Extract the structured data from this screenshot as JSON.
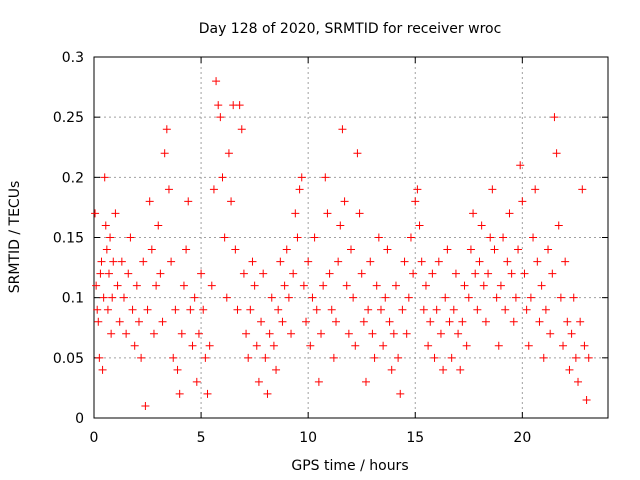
{
  "chart_data": {
    "type": "scatter",
    "title": "Day 128 of 2020, SRMTID for receiver wroc",
    "xlabel": "GPS time / hours",
    "ylabel": "SRMTID / TECUs",
    "xlim": [
      0,
      24.0
    ],
    "ylim": [
      0,
      0.3
    ],
    "xticks": [
      0,
      5,
      10,
      15,
      20
    ],
    "xtick_labels": [
      "0",
      "5",
      "10",
      "15",
      "20"
    ],
    "yticks": [
      0,
      0.05,
      0.1,
      0.15,
      0.2,
      0.25,
      0.3
    ],
    "ytick_labels": [
      "0",
      "0.05",
      "0.1",
      "0.15",
      "0.2",
      "0.25",
      "0.3"
    ],
    "grid": true,
    "marker": "+",
    "color": "#ff0000",
    "series": [
      {
        "name": "SRMTID",
        "points": [
          [
            0.05,
            0.17
          ],
          [
            0.1,
            0.11
          ],
          [
            0.15,
            0.09
          ],
          [
            0.2,
            0.08
          ],
          [
            0.25,
            0.05
          ],
          [
            0.3,
            0.12
          ],
          [
            0.35,
            0.13
          ],
          [
            0.4,
            0.04
          ],
          [
            0.45,
            0.1
          ],
          [
            0.5,
            0.2
          ],
          [
            0.55,
            0.16
          ],
          [
            0.6,
            0.14
          ],
          [
            0.65,
            0.09
          ],
          [
            0.7,
            0.12
          ],
          [
            0.75,
            0.15
          ],
          [
            0.8,
            0.07
          ],
          [
            0.85,
            0.1
          ],
          [
            0.9,
            0.13
          ],
          [
            1.0,
            0.17
          ],
          [
            1.1,
            0.11
          ],
          [
            1.2,
            0.08
          ],
          [
            1.3,
            0.13
          ],
          [
            1.4,
            0.1
          ],
          [
            1.5,
            0.07
          ],
          [
            1.6,
            0.12
          ],
          [
            1.7,
            0.15
          ],
          [
            1.8,
            0.09
          ],
          [
            1.9,
            0.06
          ],
          [
            2.0,
            0.11
          ],
          [
            2.1,
            0.08
          ],
          [
            2.2,
            0.05
          ],
          [
            2.3,
            0.13
          ],
          [
            2.4,
            0.01
          ],
          [
            2.5,
            0.09
          ],
          [
            2.6,
            0.18
          ],
          [
            2.7,
            0.14
          ],
          [
            2.8,
            0.07
          ],
          [
            2.9,
            0.11
          ],
          [
            3.0,
            0.16
          ],
          [
            3.1,
            0.12
          ],
          [
            3.2,
            0.08
          ],
          [
            3.3,
            0.22
          ],
          [
            3.4,
            0.24
          ],
          [
            3.5,
            0.19
          ],
          [
            3.6,
            0.13
          ],
          [
            3.7,
            0.05
          ],
          [
            3.8,
            0.09
          ],
          [
            3.9,
            0.04
          ],
          [
            4.0,
            0.02
          ],
          [
            4.1,
            0.07
          ],
          [
            4.2,
            0.11
          ],
          [
            4.3,
            0.14
          ],
          [
            4.4,
            0.18
          ],
          [
            4.5,
            0.09
          ],
          [
            4.6,
            0.06
          ],
          [
            4.7,
            0.1
          ],
          [
            4.8,
            0.03
          ],
          [
            4.9,
            0.07
          ],
          [
            5.0,
            0.12
          ],
          [
            5.1,
            0.09
          ],
          [
            5.2,
            0.05
          ],
          [
            5.3,
            0.02
          ],
          [
            5.4,
            0.06
          ],
          [
            5.5,
            0.11
          ],
          [
            5.6,
            0.19
          ],
          [
            5.7,
            0.28
          ],
          [
            5.8,
            0.26
          ],
          [
            5.9,
            0.25
          ],
          [
            6.0,
            0.2
          ],
          [
            6.1,
            0.15
          ],
          [
            6.2,
            0.1
          ],
          [
            6.3,
            0.22
          ],
          [
            6.4,
            0.18
          ],
          [
            6.5,
            0.26
          ],
          [
            6.6,
            0.14
          ],
          [
            6.7,
            0.09
          ],
          [
            6.8,
            0.26
          ],
          [
            6.9,
            0.24
          ],
          [
            7.0,
            0.12
          ],
          [
            7.1,
            0.07
          ],
          [
            7.2,
            0.05
          ],
          [
            7.3,
            0.09
          ],
          [
            7.4,
            0.13
          ],
          [
            7.5,
            0.11
          ],
          [
            7.6,
            0.06
          ],
          [
            7.7,
            0.03
          ],
          [
            7.8,
            0.08
          ],
          [
            7.9,
            0.12
          ],
          [
            8.0,
            0.05
          ],
          [
            8.1,
            0.02
          ],
          [
            8.2,
            0.07
          ],
          [
            8.3,
            0.1
          ],
          [
            8.4,
            0.06
          ],
          [
            8.5,
            0.04
          ],
          [
            8.6,
            0.09
          ],
          [
            8.7,
            0.13
          ],
          [
            8.8,
            0.08
          ],
          [
            8.9,
            0.11
          ],
          [
            9.0,
            0.14
          ],
          [
            9.1,
            0.1
          ],
          [
            9.2,
            0.07
          ],
          [
            9.3,
            0.12
          ],
          [
            9.4,
            0.17
          ],
          [
            9.5,
            0.15
          ],
          [
            9.6,
            0.19
          ],
          [
            9.7,
            0.2
          ],
          [
            9.8,
            0.11
          ],
          [
            9.9,
            0.08
          ],
          [
            10.0,
            0.13
          ],
          [
            10.1,
            0.06
          ],
          [
            10.2,
            0.1
          ],
          [
            10.3,
            0.15
          ],
          [
            10.4,
            0.09
          ],
          [
            10.5,
            0.03
          ],
          [
            10.6,
            0.07
          ],
          [
            10.7,
            0.11
          ],
          [
            10.8,
            0.2
          ],
          [
            10.9,
            0.17
          ],
          [
            11.0,
            0.12
          ],
          [
            11.1,
            0.09
          ],
          [
            11.2,
            0.05
          ],
          [
            11.3,
            0.08
          ],
          [
            11.4,
            0.13
          ],
          [
            11.5,
            0.16
          ],
          [
            11.6,
            0.24
          ],
          [
            11.7,
            0.18
          ],
          [
            11.8,
            0.11
          ],
          [
            11.9,
            0.07
          ],
          [
            12.0,
            0.14
          ],
          [
            12.1,
            0.1
          ],
          [
            12.2,
            0.06
          ],
          [
            12.3,
            0.22
          ],
          [
            12.4,
            0.17
          ],
          [
            12.5,
            0.12
          ],
          [
            12.6,
            0.08
          ],
          [
            12.7,
            0.03
          ],
          [
            12.8,
            0.09
          ],
          [
            12.9,
            0.13
          ],
          [
            13.0,
            0.07
          ],
          [
            13.1,
            0.05
          ],
          [
            13.2,
            0.11
          ],
          [
            13.3,
            0.15
          ],
          [
            13.4,
            0.09
          ],
          [
            13.5,
            0.06
          ],
          [
            13.6,
            0.1
          ],
          [
            13.7,
            0.14
          ],
          [
            13.8,
            0.08
          ],
          [
            13.9,
            0.04
          ],
          [
            14.0,
            0.07
          ],
          [
            14.1,
            0.11
          ],
          [
            14.2,
            0.05
          ],
          [
            14.3,
            0.02
          ],
          [
            14.4,
            0.09
          ],
          [
            14.5,
            0.13
          ],
          [
            14.6,
            0.07
          ],
          [
            14.7,
            0.1
          ],
          [
            14.8,
            0.15
          ],
          [
            14.9,
            0.12
          ],
          [
            15.0,
            0.18
          ],
          [
            15.1,
            0.19
          ],
          [
            15.2,
            0.16
          ],
          [
            15.3,
            0.13
          ],
          [
            15.4,
            0.09
          ],
          [
            15.5,
            0.11
          ],
          [
            15.6,
            0.06
          ],
          [
            15.7,
            0.08
          ],
          [
            15.8,
            0.12
          ],
          [
            15.9,
            0.05
          ],
          [
            16.0,
            0.09
          ],
          [
            16.1,
            0.13
          ],
          [
            16.2,
            0.07
          ],
          [
            16.3,
            0.04
          ],
          [
            16.4,
            0.1
          ],
          [
            16.5,
            0.14
          ],
          [
            16.6,
            0.08
          ],
          [
            16.7,
            0.05
          ],
          [
            16.8,
            0.09
          ],
          [
            16.9,
            0.12
          ],
          [
            17.0,
            0.07
          ],
          [
            17.1,
            0.04
          ],
          [
            17.2,
            0.08
          ],
          [
            17.3,
            0.11
          ],
          [
            17.4,
            0.06
          ],
          [
            17.5,
            0.1
          ],
          [
            17.6,
            0.14
          ],
          [
            17.7,
            0.17
          ],
          [
            17.8,
            0.12
          ],
          [
            17.9,
            0.09
          ],
          [
            18.0,
            0.13
          ],
          [
            18.1,
            0.16
          ],
          [
            18.2,
            0.11
          ],
          [
            18.3,
            0.08
          ],
          [
            18.4,
            0.12
          ],
          [
            18.5,
            0.15
          ],
          [
            18.6,
            0.19
          ],
          [
            18.7,
            0.14
          ],
          [
            18.8,
            0.1
          ],
          [
            18.9,
            0.06
          ],
          [
            19.0,
            0.11
          ],
          [
            19.1,
            0.15
          ],
          [
            19.2,
            0.09
          ],
          [
            19.3,
            0.13
          ],
          [
            19.4,
            0.17
          ],
          [
            19.5,
            0.12
          ],
          [
            19.6,
            0.08
          ],
          [
            19.7,
            0.1
          ],
          [
            19.8,
            0.14
          ],
          [
            19.9,
            0.21
          ],
          [
            20.0,
            0.18
          ],
          [
            20.1,
            0.12
          ],
          [
            20.2,
            0.09
          ],
          [
            20.3,
            0.06
          ],
          [
            20.4,
            0.1
          ],
          [
            20.5,
            0.15
          ],
          [
            20.6,
            0.19
          ],
          [
            20.7,
            0.13
          ],
          [
            20.8,
            0.08
          ],
          [
            20.9,
            0.11
          ],
          [
            21.0,
            0.05
          ],
          [
            21.1,
            0.09
          ],
          [
            21.2,
            0.14
          ],
          [
            21.3,
            0.07
          ],
          [
            21.4,
            0.12
          ],
          [
            21.5,
            0.25
          ],
          [
            21.6,
            0.22
          ],
          [
            21.7,
            0.16
          ],
          [
            21.8,
            0.1
          ],
          [
            21.9,
            0.06
          ],
          [
            22.0,
            0.13
          ],
          [
            22.1,
            0.08
          ],
          [
            22.2,
            0.04
          ],
          [
            22.3,
            0.07
          ],
          [
            22.4,
            0.1
          ],
          [
            22.5,
            0.05
          ],
          [
            22.6,
            0.03
          ],
          [
            22.7,
            0.08
          ],
          [
            22.8,
            0.19
          ],
          [
            22.9,
            0.06
          ],
          [
            23.0,
            0.015
          ],
          [
            23.1,
            0.05
          ]
        ]
      }
    ]
  }
}
